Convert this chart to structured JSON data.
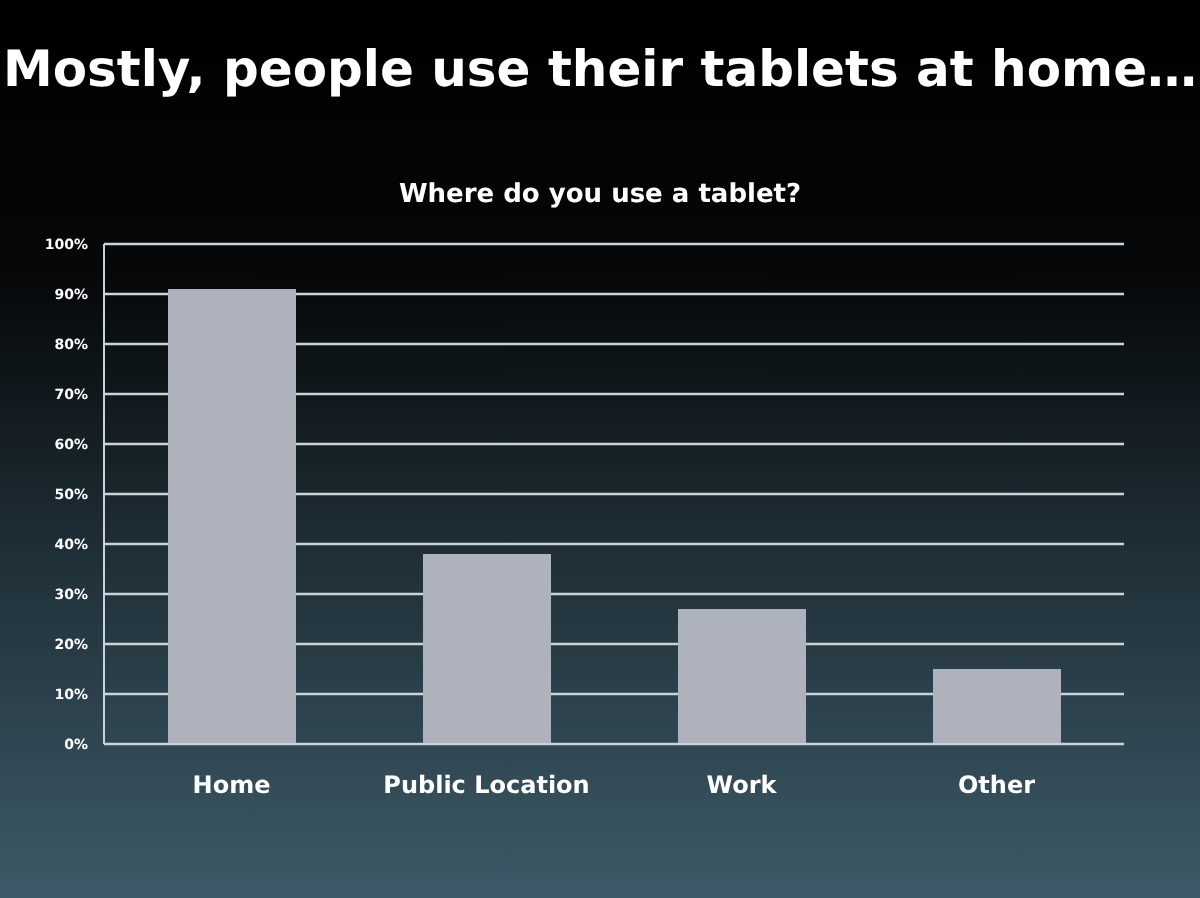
{
  "chart_data": {
    "type": "bar",
    "title": "Mostly, people use their tablets at home…",
    "subtitle": "Where do you use a tablet?",
    "categories": [
      "Home",
      "Public Location",
      "Work",
      "Other"
    ],
    "values": [
      91,
      38,
      27,
      15
    ],
    "color": "#aeb2bd",
    "ylim": [
      0,
      100
    ],
    "yticks": [
      {
        "value": 0,
        "label": "0%"
      },
      {
        "value": 10,
        "label": "10%"
      },
      {
        "value": 20,
        "label": "20%"
      },
      {
        "value": 30,
        "label": "30%"
      },
      {
        "value": 40,
        "label": "40%"
      },
      {
        "value": 50,
        "label": "50%"
      },
      {
        "value": 60,
        "label": "60%"
      },
      {
        "value": 70,
        "label": "70%"
      },
      {
        "value": 80,
        "label": "80%"
      },
      {
        "value": 90,
        "label": "90%"
      },
      {
        "value": 100,
        "label": "100%"
      }
    ],
    "grid": "y",
    "legend": false
  }
}
